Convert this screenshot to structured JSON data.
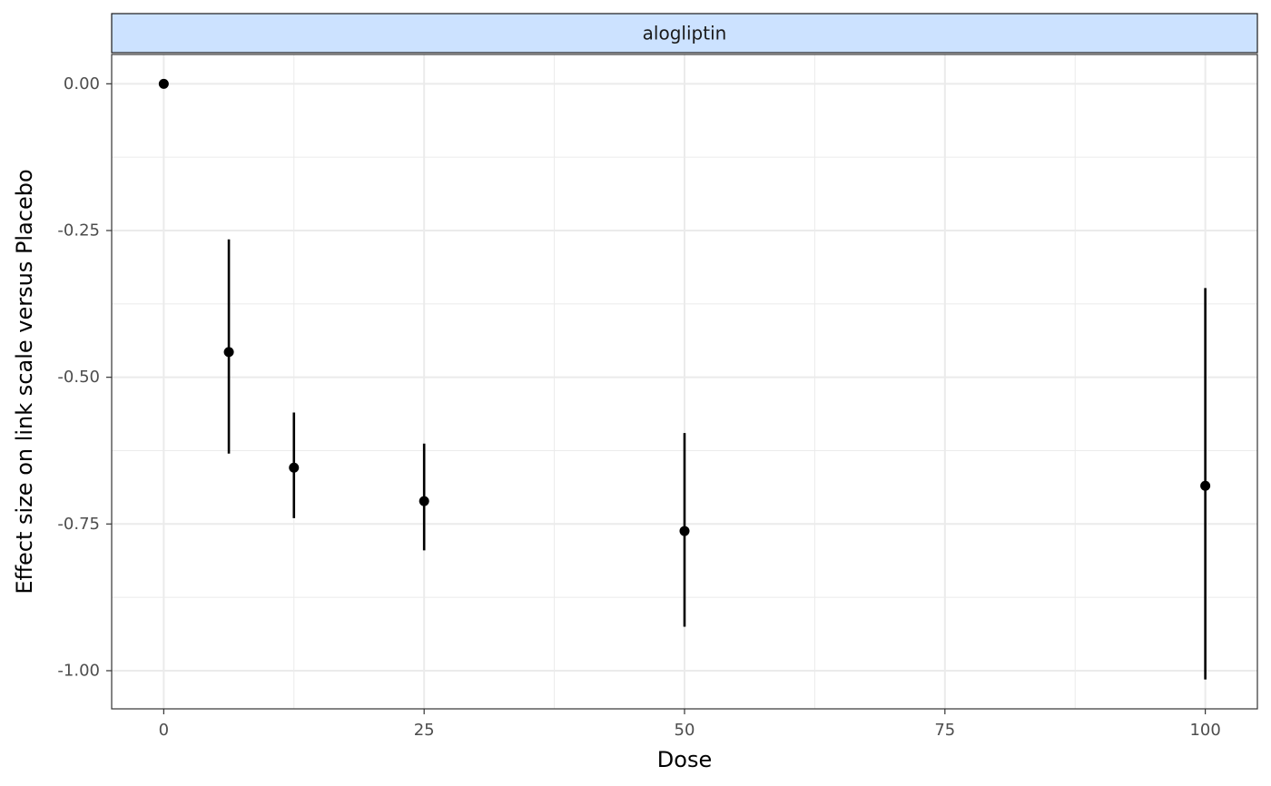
{
  "chart_data": {
    "type": "scatter",
    "facet_label": "alogliptin",
    "xlabel": "Dose",
    "ylabel": "Effect size on link scale versus Placebo",
    "xlim": [
      -5,
      105
    ],
    "ylim": [
      -1.065,
      0.05
    ],
    "x_ticks": [
      0,
      25,
      50,
      75,
      100
    ],
    "x_tick_labels": [
      "0",
      "25",
      "50",
      "75",
      "100"
    ],
    "x_minor_ticks": [
      12.5,
      37.5,
      62.5,
      87.5
    ],
    "y_ticks": [
      0,
      -0.25,
      -0.5,
      -0.75,
      -1.0
    ],
    "y_tick_labels": [
      "0.00",
      "-0.25",
      "-0.50",
      "-0.75",
      "-1.00"
    ],
    "y_minor_ticks": [
      -0.125,
      -0.375,
      -0.625,
      -0.875
    ],
    "grid": true,
    "points": [
      {
        "x": 0,
        "y": 0.0,
        "lower": null,
        "upper": null
      },
      {
        "x": 6.25,
        "y": -0.457,
        "lower": -0.63,
        "upper": -0.265
      },
      {
        "x": 12.5,
        "y": -0.654,
        "lower": -0.74,
        "upper": -0.56
      },
      {
        "x": 25,
        "y": -0.711,
        "lower": -0.795,
        "upper": -0.613
      },
      {
        "x": 50,
        "y": -0.762,
        "lower": -0.925,
        "upper": -0.595
      },
      {
        "x": 100,
        "y": -0.685,
        "lower": -1.015,
        "upper": -0.348
      }
    ],
    "colors": {
      "strip_fill": "#cce2ff",
      "point": "#000000",
      "grid": "#ebebeb",
      "panel_border": "#333333"
    }
  }
}
